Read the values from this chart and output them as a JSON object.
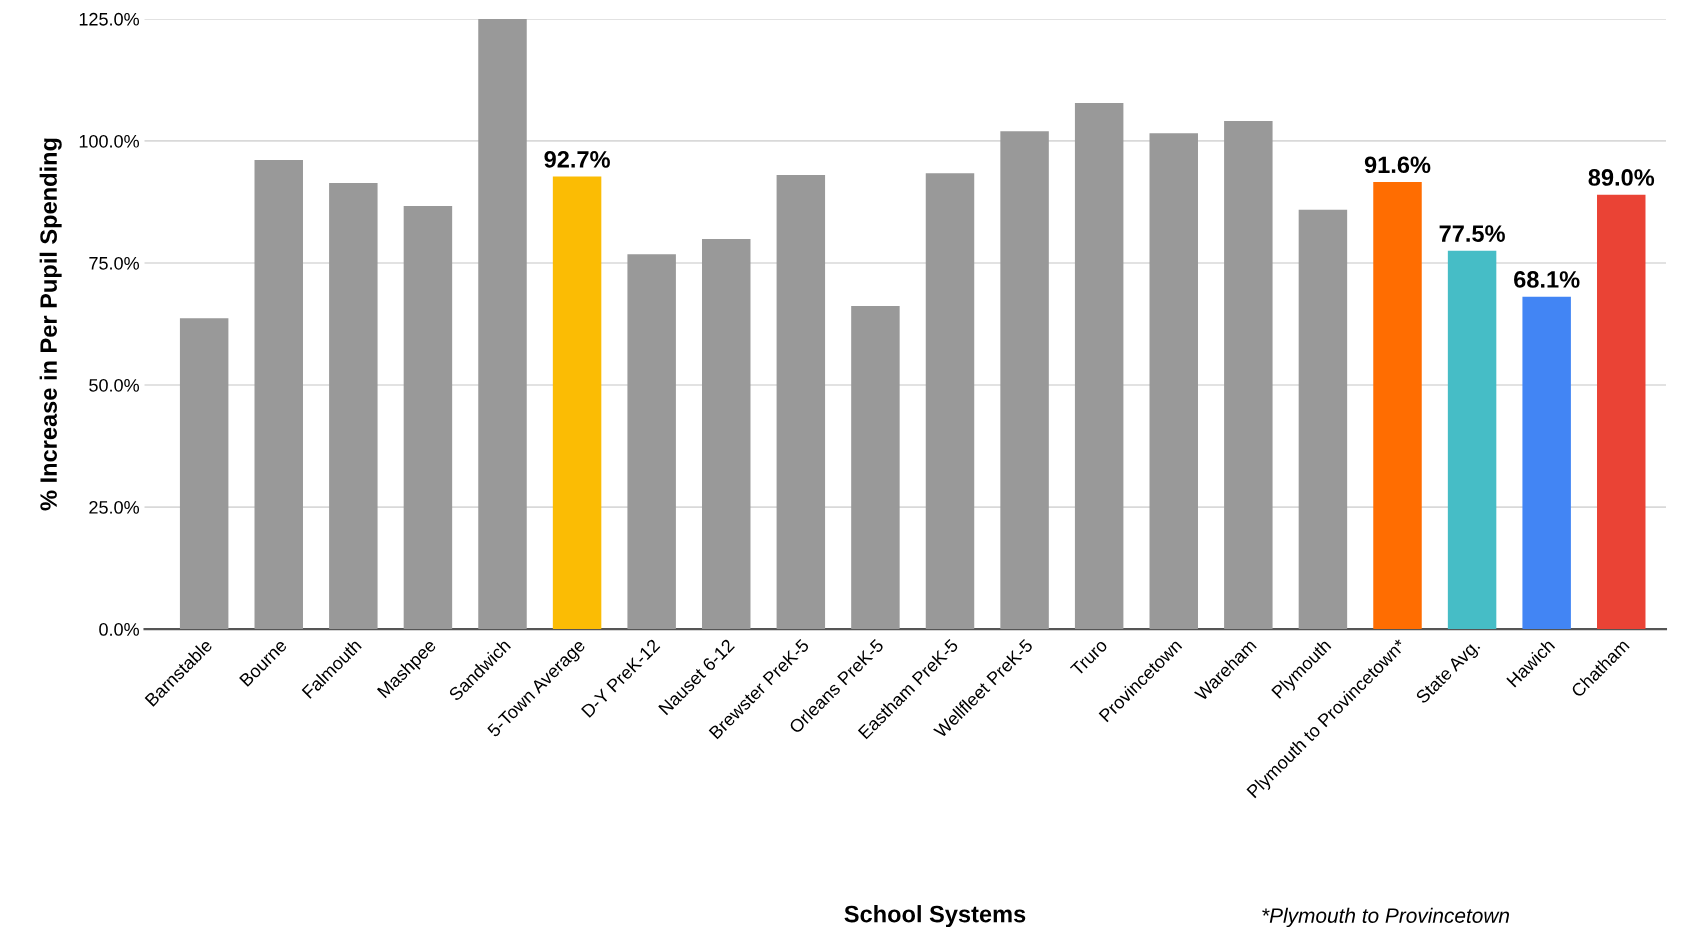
{
  "chart_data": {
    "type": "bar",
    "xlabel": "School Systems",
    "ylabel": "% Increase in Per Pupil Spending",
    "annotations": [
      "*Plymouth to Provincetown"
    ],
    "categories": [
      "Barnstable",
      "Bourne",
      "Falmouth",
      "Mashpee",
      "Sandwich",
      "5-Town Average",
      "D-Y PreK-12",
      "Nauset 6-12",
      "Brewster PreK-5",
      "Orleans PreK-5",
      "Eastham PreK-5",
      "Wellfleet PreK-5",
      "Truro",
      "Provincetown",
      "Wareham",
      "Plymouth",
      "Plymouth to Provincetown*",
      "State Avg.",
      "Hawich",
      "Chatham"
    ],
    "values": [
      63.7,
      96.1,
      91.4,
      86.7,
      125.0,
      92.7,
      76.8,
      79.9,
      93.0,
      66.2,
      93.4,
      102.0,
      107.8,
      101.6,
      104.1,
      85.9,
      91.6,
      77.5,
      68.1,
      89.0
    ],
    "colors": [
      "#999999",
      "#999999",
      "#999999",
      "#999999",
      "#999999",
      "#fbbc04",
      "#999999",
      "#999999",
      "#999999",
      "#999999",
      "#999999",
      "#999999",
      "#999999",
      "#999999",
      "#999999",
      "#999999",
      "#ff6d01",
      "#46bdc6",
      "#4285f4",
      "#ea4335"
    ],
    "value_labels": [
      null,
      null,
      null,
      null,
      null,
      "92.7%",
      null,
      null,
      null,
      null,
      null,
      null,
      null,
      null,
      null,
      null,
      "91.6%",
      "77.5%",
      "68.1%",
      "89.0%"
    ],
    "ylim": [
      0,
      125
    ],
    "yticks": [
      {
        "value": 0,
        "label": "0.0%"
      },
      {
        "value": 25,
        "label": "25.0%"
      },
      {
        "value": 50,
        "label": "50.0%"
      },
      {
        "value": 75,
        "label": "75.0%"
      },
      {
        "value": 100,
        "label": "100.0%"
      },
      {
        "value": 125,
        "label": "125.0%"
      }
    ],
    "grid": "y",
    "legend": false
  }
}
